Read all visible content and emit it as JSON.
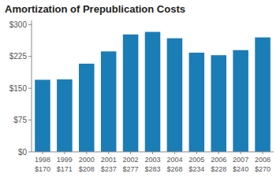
{
  "chart_data": {
    "type": "bar",
    "title": "Amortization of Prepublication Costs",
    "categories": [
      "1998",
      "1999",
      "2000",
      "2001",
      "2002",
      "2003",
      "2004",
      "2005",
      "2006",
      "2007",
      "2008"
    ],
    "values": [
      170,
      171,
      208,
      237,
      277,
      283,
      268,
      234,
      228,
      240,
      270
    ],
    "value_labels": [
      "$170",
      "$171",
      "$208",
      "$237",
      "$277",
      "$283",
      "$268",
      "$234",
      "$228",
      "$240",
      "$270"
    ],
    "data_labels": true,
    "color": "#1a7db5",
    "ylim": [
      0,
      310
    ],
    "yticks": [
      {
        "value": 0,
        "label": "$0"
      },
      {
        "value": 75,
        "label": "$75"
      },
      {
        "value": 150,
        "label": "$150"
      },
      {
        "value": 225,
        "label": "$225"
      },
      {
        "value": 300,
        "label": "$300"
      }
    ],
    "grid": false
  }
}
